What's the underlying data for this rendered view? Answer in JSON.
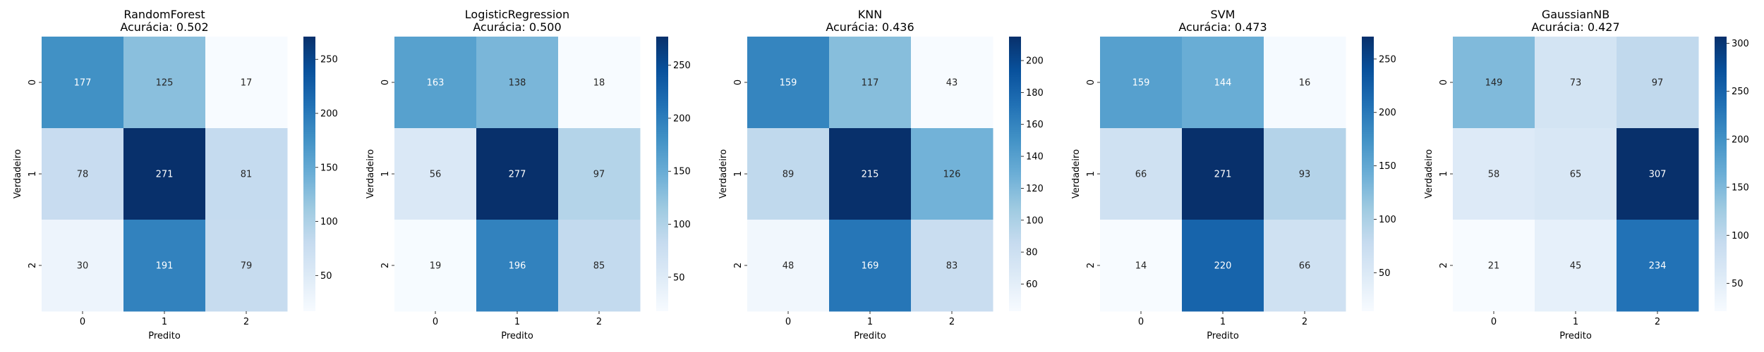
{
  "chart_data": [
    {
      "type": "heatmap",
      "title": "RandomForest",
      "subtitle": "Acurácia: 0.502",
      "xlabel": "Predito",
      "ylabel": "Verdadeiro",
      "x_categories": [
        "0",
        "1",
        "2"
      ],
      "y_categories": [
        "0",
        "1",
        "2"
      ],
      "values": [
        [
          177,
          125,
          17
        ],
        [
          78,
          271,
          81
        ],
        [
          30,
          191,
          79
        ]
      ],
      "colorbar_ticks": [
        50,
        100,
        150,
        200,
        250
      ],
      "colormap": "Blues"
    },
    {
      "type": "heatmap",
      "title": "LogisticRegression",
      "subtitle": "Acurácia: 0.500",
      "xlabel": "Predito",
      "ylabel": "Verdadeiro",
      "x_categories": [
        "0",
        "1",
        "2"
      ],
      "y_categories": [
        "0",
        "1",
        "2"
      ],
      "values": [
        [
          163,
          138,
          18
        ],
        [
          56,
          277,
          97
        ],
        [
          19,
          196,
          85
        ]
      ],
      "colorbar_ticks": [
        50,
        100,
        150,
        200,
        250
      ],
      "colormap": "Blues"
    },
    {
      "type": "heatmap",
      "title": "KNN",
      "subtitle": "Acurácia: 0.436",
      "xlabel": "Predito",
      "ylabel": "Verdadeiro",
      "x_categories": [
        "0",
        "1",
        "2"
      ],
      "y_categories": [
        "0",
        "1",
        "2"
      ],
      "values": [
        [
          159,
          117,
          43
        ],
        [
          89,
          215,
          126
        ],
        [
          48,
          169,
          83
        ]
      ],
      "colorbar_ticks": [
        60,
        80,
        100,
        120,
        140,
        160,
        180,
        200
      ],
      "colormap": "Blues"
    },
    {
      "type": "heatmap",
      "title": "SVM",
      "subtitle": "Acurácia: 0.473",
      "xlabel": "Predito",
      "ylabel": "Verdadeiro",
      "x_categories": [
        "0",
        "1",
        "2"
      ],
      "y_categories": [
        "0",
        "1",
        "2"
      ],
      "values": [
        [
          159,
          144,
          16
        ],
        [
          66,
          271,
          93
        ],
        [
          14,
          220,
          66
        ]
      ],
      "colorbar_ticks": [
        50,
        100,
        150,
        200,
        250
      ],
      "colormap": "Blues"
    },
    {
      "type": "heatmap",
      "title": "GaussianNB",
      "subtitle": "Acurácia: 0.427",
      "xlabel": "Predito",
      "ylabel": "Verdadeiro",
      "x_categories": [
        "0",
        "1",
        "2"
      ],
      "y_categories": [
        "0",
        "1",
        "2"
      ],
      "values": [
        [
          149,
          73,
          97
        ],
        [
          58,
          65,
          307
        ],
        [
          21,
          45,
          234
        ]
      ],
      "colorbar_ticks": [
        50,
        100,
        150,
        200,
        250,
        300
      ],
      "colormap": "Blues"
    }
  ]
}
